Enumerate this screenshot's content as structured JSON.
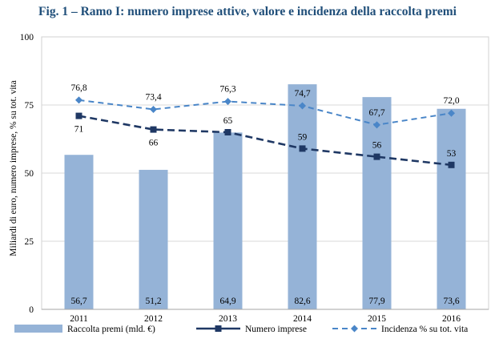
{
  "title": "Fig. 1 – Ramo I: numero imprese attive, valore e incidenza della raccolta premi",
  "chart_data": {
    "type": "bar",
    "categories": [
      "2011",
      "2012",
      "2013",
      "2014",
      "2015",
      "2016"
    ],
    "ylabel": "Miliardi di euro, numero imprese, % su tot. vita",
    "ylim": [
      0,
      100
    ],
    "yticks": [
      "0",
      "25",
      "50",
      "75",
      "100"
    ],
    "grid": true,
    "legend_position": "bottom",
    "series": [
      {
        "name": "Raccolta premi (mld. €)",
        "kind": "bar",
        "color": "#95b3d7",
        "values": [
          56.7,
          51.2,
          64.9,
          82.6,
          77.9,
          73.6
        ],
        "labels": [
          "56,7",
          "51,2",
          "64,9",
          "82,6",
          "77,9",
          "73,6"
        ]
      },
      {
        "name": "Numero imprese",
        "kind": "line",
        "style": "dashed",
        "marker": "square",
        "color": "#1f3864",
        "values": [
          71,
          66,
          65,
          59,
          56,
          53
        ],
        "labels": [
          "71",
          "66",
          "65",
          "59",
          "56",
          "53"
        ]
      },
      {
        "name": "Incidenza % su tot. vita",
        "kind": "line",
        "style": "dashed",
        "marker": "diamond",
        "color": "#4a86c8",
        "values": [
          76.8,
          73.4,
          76.3,
          74.7,
          67.7,
          72.0
        ],
        "labels": [
          "76,8",
          "73,4",
          "76,3",
          "74,7",
          "67,7",
          "72,0"
        ]
      }
    ]
  }
}
